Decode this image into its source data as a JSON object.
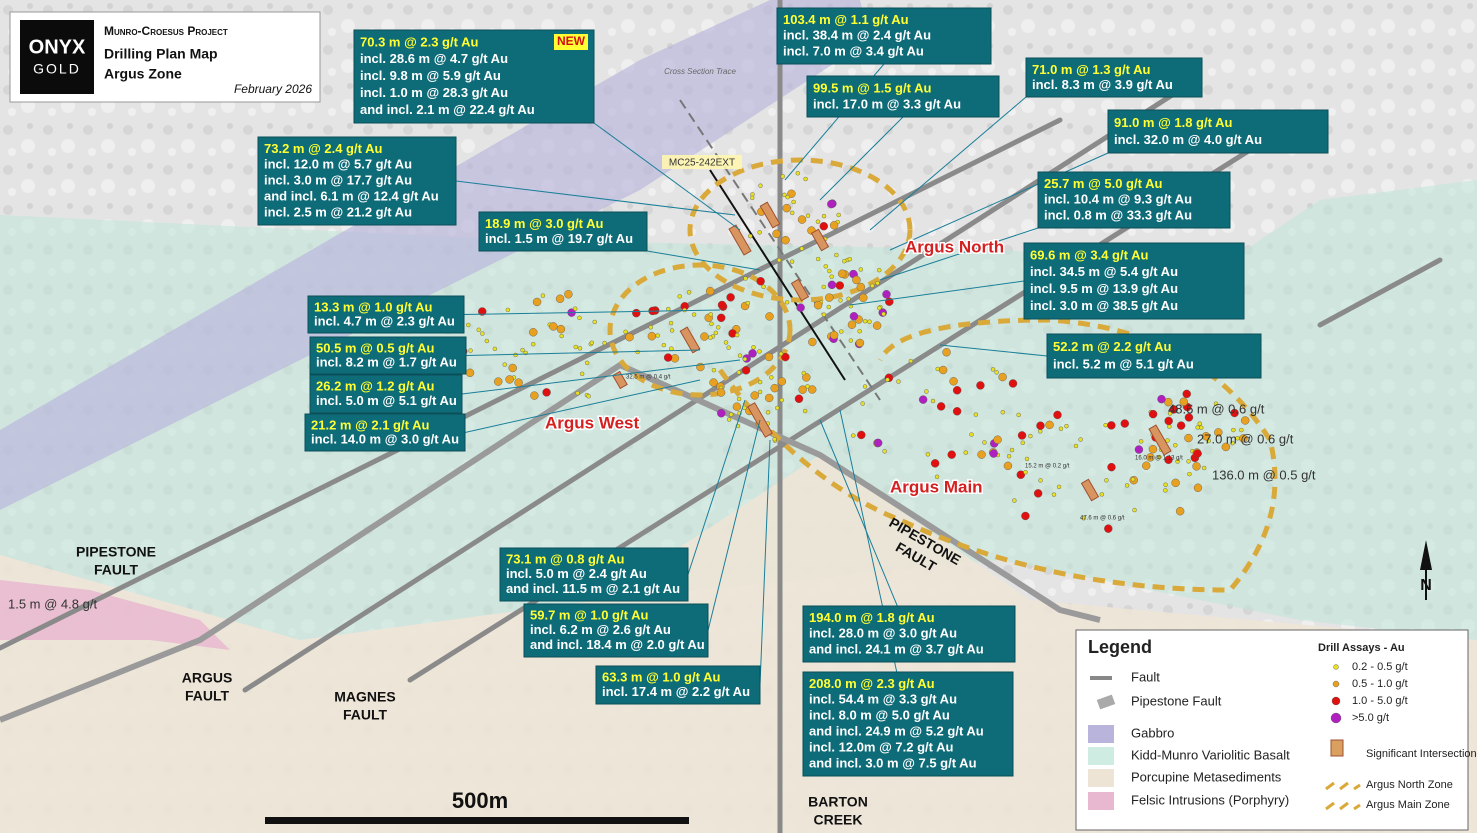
{
  "header": {
    "logo_top": "ONYX",
    "logo_bottom": "GOLD",
    "project": "Munro-Croesus Project",
    "title": "Drilling Plan Map",
    "subtitle": "Argus Zone",
    "date": "February 2026"
  },
  "callouts": [
    {
      "lines": [
        "70.3 m @ 2.3 g/t Au",
        "incl. 28.6 m @ 4.7 g/t Au",
        "incl. 9.8 m @ 5.9 g/t Au",
        "incl. 1.0 m @ 28.3 g/t Au",
        "and incl. 2.1 m @ 22.4 g/t Au"
      ],
      "badge": "NEW"
    },
    {
      "lines": [
        "103.4 m @ 1.1 g/t Au",
        "incl. 38.4 m @ 2.4 g/t Au",
        "incl. 7.0 m @ 3.4 g/t Au"
      ]
    },
    {
      "lines": [
        "99.5 m @ 1.5 g/t Au",
        "incl. 17.0 m @ 3.3 g/t Au"
      ]
    },
    {
      "lines": [
        "71.0 m @ 1.3 g/t Au",
        "incl. 8.3 m @ 3.9 g/t Au"
      ]
    },
    {
      "lines": [
        "91.0 m @ 1.8 g/t Au",
        "incl. 32.0 m @ 4.0 g/t Au"
      ]
    },
    {
      "lines": [
        "73.2 m @ 2.4 g/t Au",
        "incl. 12.0 m @ 5.7 g/t Au",
        "incl. 3.0 m @ 17.7 g/t Au",
        "and incl. 6.1 m @ 12.4 g/t Au",
        "incl. 2.5 m @ 21.2 g/t Au"
      ]
    },
    {
      "lines": [
        "25.7 m @ 5.0 g/t Au",
        "incl. 10.4 m @ 9.3 g/t Au",
        "incl. 0.8 m @ 33.3 g/t Au"
      ]
    },
    {
      "lines": [
        "18.9 m @ 3.0 g/t Au",
        "incl. 1.5 m @ 19.7 g/t Au"
      ]
    },
    {
      "lines": [
        "69.6 m @ 3.4 g/t Au",
        "incl. 34.5 m @ 5.4 g/t Au",
        "incl. 9.5 m @ 13.9 g/t Au",
        "incl. 3.0 m @ 38.5 g/t Au"
      ]
    },
    {
      "lines": [
        "13.3 m @ 1.0 g/t Au",
        "incl. 4.7 m @ 2.3 g/t Au"
      ]
    },
    {
      "lines": [
        "52.2 m @ 2.2 g/t Au",
        "incl. 5.2 m @ 5.1 g/t Au"
      ]
    },
    {
      "lines": [
        "50.5 m @ 0.5 g/t Au",
        "incl. 8.2 m @ 1.7 g/t Au"
      ]
    },
    {
      "lines": [
        "26.2 m @ 1.2 g/t Au",
        "incl. 5.0 m @ 5.1 g/t Au"
      ]
    },
    {
      "lines": [
        "21.2 m @ 2.1 g/t Au",
        "incl. 14.0 m @ 3.0 g/t Au"
      ]
    },
    {
      "lines": [
        "73.1 m @ 0.8 g/t Au",
        "incl. 5.0 m @ 2.4 g/t Au",
        "and incl. 11.5 m @ 2.1 g/t Au"
      ]
    },
    {
      "lines": [
        "59.7 m @ 1.0 g/t Au",
        "incl. 6.2 m @ 2.6 g/t Au",
        "and incl. 18.4 m @ 2.0 g/t Au"
      ]
    },
    {
      "lines": [
        "63.3 m @ 1.0 g/t Au",
        "incl. 17.4 m @ 2.2 g/t Au"
      ]
    },
    {
      "lines": [
        "194.0 m @ 1.8 g/t Au",
        "incl. 28.0 m @ 3.0 g/t Au",
        "and incl. 24.1 m @ 3.7 g/t Au"
      ]
    },
    {
      "lines": [
        "208.0 m @ 2.3 g/t Au",
        "incl. 54.4 m @ 3.3 g/t Au",
        "incl. 8.0 m @ 5.0 g/t Au",
        "and incl. 24.9 m @ 5.2 g/t Au",
        "incl. 12.0m @ 7.2 g/t Au",
        "and incl. 3.0 m @ 7.5 g/t Au"
      ]
    }
  ],
  "zone_labels": [
    "Argus North",
    "Argus West",
    "Argus Main"
  ],
  "fault_labels": [
    "PIPESTONE FAULT",
    "PIPESTONE FAULT",
    "ARGUS FAULT",
    "MAGNES FAULT",
    "BARTON CREEK FAULT"
  ],
  "map_labels": {
    "section_trace": "Cross Section Trace",
    "hole_id": "MC25-242EXT",
    "scale": "500m",
    "north": "N"
  },
  "small_intercepts": [
    "48.6 m @ 0.6 g/t",
    "27.0 m @ 0.6 g/t",
    "136.0 m @ 0.5 g/t",
    "1.5 m @ 4.8 g/t",
    "32.5 m @ 0.4 g/t",
    "16.0 m @ 1.13 g/t",
    "47.6 m @ 0.6 g/t",
    "15.2 m @ 0.2 g/t"
  ],
  "legend": {
    "title": "Legend",
    "geology": [
      "Fault",
      "Pipestone Fault",
      "Gabbro",
      "Kidd-Munro Variolitic Basalt",
      "Porcupine Metasediments",
      "Felsic Intrusions (Porphyry)"
    ],
    "assay_title": "Drill Assays - Au",
    "assays": [
      "0.2 - 0.5 g/t",
      "0.5 - 1.0 g/t",
      "1.0 - 5.0 g/t",
      ">5.0 g/t"
    ],
    "other": [
      "Significant Intersection",
      "Argus North Zone",
      "Argus Main Zone"
    ]
  }
}
